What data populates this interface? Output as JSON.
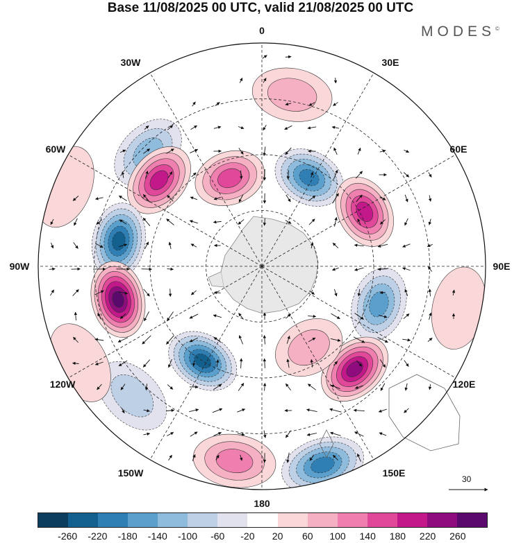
{
  "title": "Base 11/08/2025 00 UTC, valid 21/08/2025 00 UTC",
  "brand": {
    "name": "MODES",
    "mark": "©"
  },
  "longitude_labels": [
    "0",
    "30E",
    "60E",
    "90E",
    "120E",
    "150E",
    "180",
    "150W",
    "120W",
    "90W",
    "60W",
    "30W"
  ],
  "vector_reference": {
    "label": "30"
  },
  "colorbar": {
    "colors": [
      "#0b3d5e",
      "#135f8d",
      "#2f7fb5",
      "#5b9fcc",
      "#8fbbdc",
      "#bed0e6",
      "#e2e2ef",
      "#ffffff",
      "#fad7d9",
      "#f5b0c3",
      "#ef7fae",
      "#e2489a",
      "#c2188a",
      "#8e0c7e",
      "#5a0a6c"
    ],
    "tick_labels": [
      "-260",
      "-220",
      "-180",
      "-140",
      "-100",
      "-60",
      "-20",
      "20",
      "60",
      "100",
      "140",
      "180",
      "220",
      "260"
    ]
  },
  "anomaly_centers": [
    {
      "lon": 10,
      "dist": 0.78,
      "value": 80
    },
    {
      "lon": -45,
      "dist": 0.72,
      "value": -120
    },
    {
      "lon": -50,
      "dist": 0.6,
      "value": 200
    },
    {
      "lon": -20,
      "dist": 0.42,
      "value": 160
    },
    {
      "lon": 28,
      "dist": 0.45,
      "value": -200
    },
    {
      "lon": 62,
      "dist": 0.52,
      "value": 200
    },
    {
      "lon": -80,
      "dist": 0.65,
      "value": -240
    },
    {
      "lon": -103,
      "dist": 0.66,
      "value": 260
    },
    {
      "lon": 108,
      "dist": 0.55,
      "value": -170
    },
    {
      "lon": 138,
      "dist": 0.62,
      "value": 220
    },
    {
      "lon": 150,
      "dist": 0.42,
      "value": 90
    },
    {
      "lon": -148,
      "dist": 0.5,
      "value": -230
    },
    {
      "lon": -135,
      "dist": 0.82,
      "value": -90
    },
    {
      "lon": 163,
      "dist": 0.93,
      "value": -210
    },
    {
      "lon": -172,
      "dist": 0.88,
      "value": 120
    },
    {
      "lon": 102,
      "dist": 0.9,
      "value": 40
    },
    {
      "lon": -118,
      "dist": 0.92,
      "value": 40
    },
    {
      "lon": -68,
      "dist": 0.95,
      "value": 30
    }
  ]
}
